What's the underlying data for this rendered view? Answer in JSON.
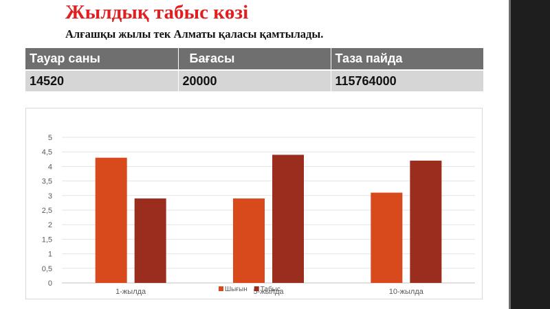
{
  "slide": {
    "title": "Жылдық табыс көзі",
    "subtitle": "Алғашқы жылы тек Алматы қаласы қамтылады."
  },
  "table": {
    "headers": [
      "Тауар саны",
      "  Бағасы",
      "Таза пайда"
    ],
    "rows": [
      [
        "14520",
        "20000",
        "115764000"
      ]
    ]
  },
  "colors": {
    "title": "#e02020",
    "series_expense": "#d84a1b",
    "series_income": "#9b2d1f",
    "table_header_bg": "#6f6f6f",
    "table_row_bg": "#d6d6d6",
    "side_bar": "#1e1e1e"
  },
  "chart_data": {
    "type": "bar",
    "categories": [
      "1-жылда",
      "5-жылда",
      "10-жылда"
    ],
    "series": [
      {
        "name": "Шығын",
        "values": [
          4.3,
          2.9,
          3.1
        ]
      },
      {
        "name": "Табыс",
        "values": [
          2.9,
          4.4,
          4.2
        ]
      }
    ],
    "ylim": [
      0,
      5
    ],
    "yticks": [
      "0",
      "0,5",
      "1",
      "1,5",
      "2",
      "2,5",
      "3",
      "3,5",
      "4",
      "4,5",
      "5"
    ],
    "grid": true,
    "legend": "bottom"
  }
}
